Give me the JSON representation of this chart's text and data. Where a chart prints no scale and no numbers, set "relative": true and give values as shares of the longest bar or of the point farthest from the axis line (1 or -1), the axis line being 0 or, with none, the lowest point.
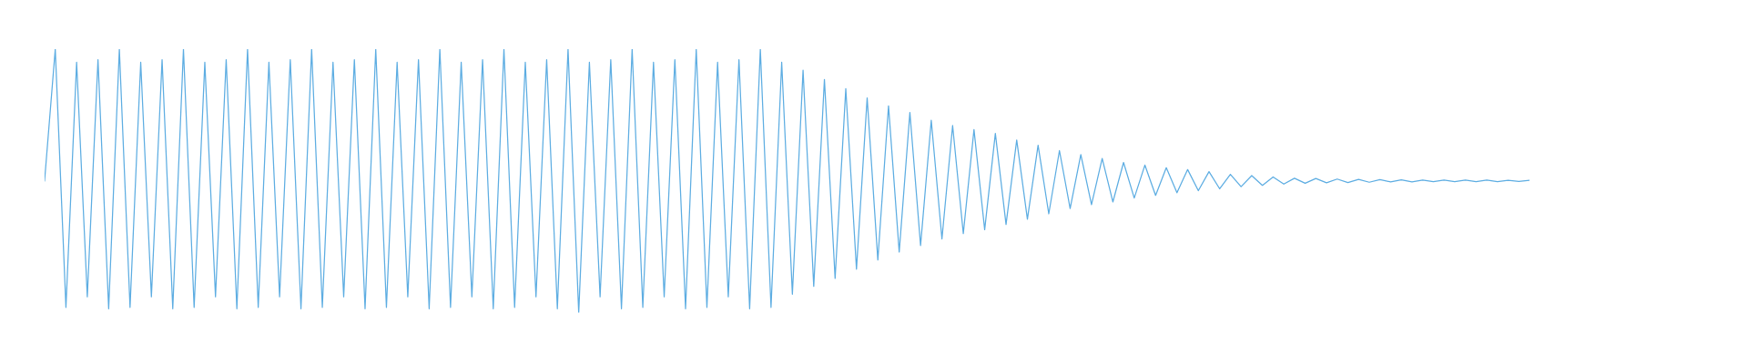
{
  "chart_data": {
    "type": "line",
    "relative": true,
    "categories": [
      null,
      null,
      null,
      null,
      null,
      null,
      null,
      null,
      null,
      null,
      null,
      null,
      null,
      null,
      null,
      null,
      null,
      null,
      null,
      null,
      null,
      null,
      null,
      null,
      null,
      null,
      null,
      null,
      null,
      null,
      null,
      null,
      null,
      null,
      null,
      null,
      null,
      null,
      null,
      null,
      null,
      null,
      null,
      null,
      null,
      null,
      null,
      null,
      null,
      null,
      null,
      null,
      null,
      null,
      null,
      null,
      null,
      null,
      null,
      null,
      null,
      null,
      null,
      null,
      null,
      null,
      null,
      null,
      null,
      null,
      null,
      null,
      null,
      null,
      null,
      null,
      null,
      null,
      null,
      null,
      null,
      null,
      null,
      null,
      null,
      null,
      null,
      null,
      null,
      null,
      null,
      null,
      null,
      null,
      null,
      null,
      null,
      null,
      null,
      null,
      null,
      null,
      null,
      null,
      null,
      null,
      null,
      null,
      null,
      null,
      null,
      null,
      null,
      null,
      null,
      null,
      null,
      null,
      null,
      null,
      null,
      null,
      null,
      null,
      null,
      null,
      null,
      null,
      null,
      null,
      null,
      null,
      null,
      null,
      null,
      null,
      null,
      null,
      null,
      null
    ],
    "series": [
      {
        "color": "#5dade2",
        "values": [
          0.5,
          1.0,
          0.02,
          0.95,
          0.06,
          0.96,
          0.015,
          1.0,
          0.02,
          0.95,
          0.06,
          0.96,
          0.015,
          1.0,
          0.02,
          0.95,
          0.06,
          0.96,
          0.015,
          1.0,
          0.02,
          0.95,
          0.06,
          0.96,
          0.015,
          1.0,
          0.02,
          0.95,
          0.06,
          0.96,
          0.015,
          1.0,
          0.02,
          0.95,
          0.06,
          0.96,
          0.015,
          1.0,
          0.02,
          0.95,
          0.06,
          0.96,
          0.015,
          1.0,
          0.02,
          0.95,
          0.06,
          0.96,
          0.015,
          1.0,
          0.0,
          0.95,
          0.06,
          0.96,
          0.015,
          1.0,
          0.02,
          0.95,
          0.06,
          0.96,
          0.015,
          1.0,
          0.02,
          0.95,
          0.06,
          0.96,
          0.015,
          1.0,
          0.02,
          0.95,
          0.07,
          0.92,
          0.1,
          0.885,
          0.13,
          0.85,
          0.165,
          0.815,
          0.2,
          0.785,
          0.23,
          0.76,
          0.255,
          0.73,
          0.28,
          0.71,
          0.3,
          0.695,
          0.315,
          0.68,
          0.335,
          0.655,
          0.355,
          0.635,
          0.375,
          0.615,
          0.395,
          0.6,
          0.41,
          0.585,
          0.42,
          0.57,
          0.435,
          0.56,
          0.445,
          0.55,
          0.455,
          0.543,
          0.463,
          0.535,
          0.47,
          0.525,
          0.478,
          0.52,
          0.483,
          0.515,
          0.488,
          0.51,
          0.491,
          0.509,
          0.493,
          0.507,
          0.494,
          0.506,
          0.495,
          0.505,
          0.496,
          0.504,
          0.496,
          0.503,
          0.497,
          0.503,
          0.497,
          0.503,
          0.497,
          0.503,
          0.497,
          0.502,
          0.498,
          0.502
        ]
      }
    ]
  }
}
